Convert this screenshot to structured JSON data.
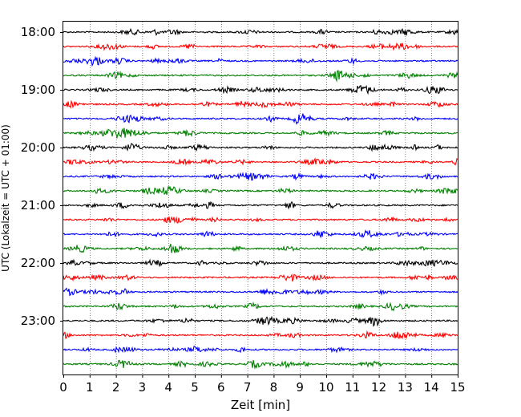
{
  "chart_data": {
    "type": "line",
    "title": "",
    "xlabel": "Zeit  [min]",
    "ylabel": "UTC (Lokalzeit = UTC + 01:00)",
    "xlim": [
      0,
      15
    ],
    "x_ticks": [
      0,
      1,
      2,
      3,
      4,
      5,
      6,
      7,
      8,
      9,
      10,
      11,
      12,
      13,
      14,
      15
    ],
    "y_tick_labels": [
      "18:00",
      "19:00",
      "20:00",
      "21:00",
      "22:00",
      "23:00"
    ],
    "trace_interval_min": 15,
    "grid": "vertical dotted lines at each minute",
    "colors_cycle": [
      "#000000",
      "#ff0000",
      "#0000ff",
      "#008000"
    ],
    "series": [
      {
        "start": "18:00",
        "color": "#000000"
      },
      {
        "start": "18:15",
        "color": "#ff0000"
      },
      {
        "start": "18:30",
        "color": "#0000ff"
      },
      {
        "start": "18:45",
        "color": "#008000"
      },
      {
        "start": "19:00",
        "color": "#000000"
      },
      {
        "start": "19:15",
        "color": "#ff0000"
      },
      {
        "start": "19:30",
        "color": "#0000ff"
      },
      {
        "start": "19:45",
        "color": "#008000"
      },
      {
        "start": "20:00",
        "color": "#000000"
      },
      {
        "start": "20:15",
        "color": "#ff0000"
      },
      {
        "start": "20:30",
        "color": "#0000ff"
      },
      {
        "start": "20:45",
        "color": "#008000"
      },
      {
        "start": "21:00",
        "color": "#000000"
      },
      {
        "start": "21:15",
        "color": "#ff0000"
      },
      {
        "start": "21:30",
        "color": "#0000ff"
      },
      {
        "start": "21:45",
        "color": "#008000"
      },
      {
        "start": "22:00",
        "color": "#000000"
      },
      {
        "start": "22:15",
        "color": "#ff0000"
      },
      {
        "start": "22:30",
        "color": "#0000ff"
      },
      {
        "start": "22:45",
        "color": "#008000"
      },
      {
        "start": "23:00",
        "color": "#000000"
      },
      {
        "start": "23:15",
        "color": "#ff0000"
      },
      {
        "start": "23:30",
        "color": "#0000ff"
      },
      {
        "start": "23:45",
        "color": "#008000"
      }
    ]
  }
}
